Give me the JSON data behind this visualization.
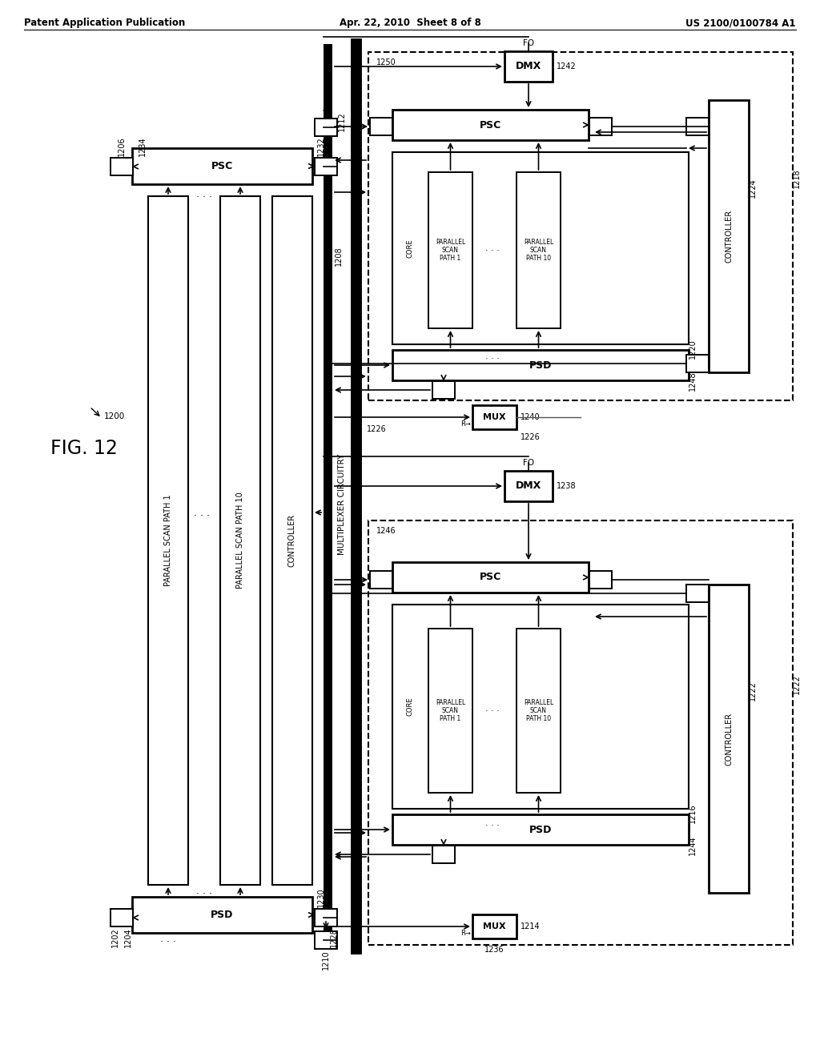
{
  "header_left": "Patent Application Publication",
  "header_center": "Apr. 22, 2010  Sheet 8 of 8",
  "header_right": "US 2100/0100784 A1",
  "fig_label": "FIG. 12",
  "bg_color": "#ffffff"
}
